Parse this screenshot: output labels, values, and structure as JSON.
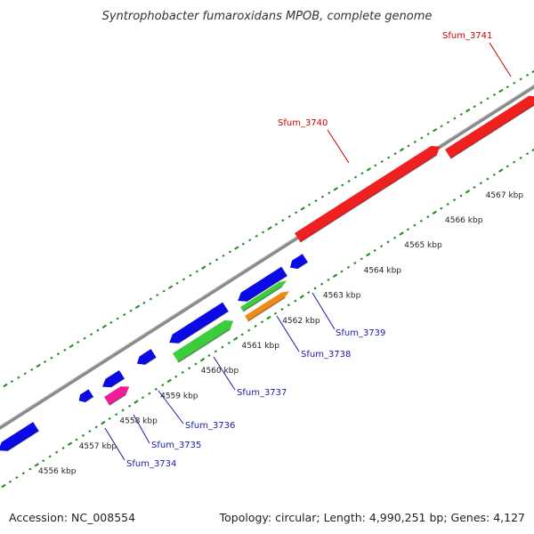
{
  "title": "Syntrophobacter fumaroxidans MPOB, complete genome",
  "footer": {
    "accession": "Accession: NC_008554",
    "summary": "Topology: circular; Length: 4,990,251 bp; Genes: 4,127"
  },
  "colors": {
    "backbone": "#8a8a8a",
    "tick": "#1f8a1f",
    "forward_label": "#cc0000",
    "reverse_label": "#1a1aa6",
    "cds_blue": "#0a0ae6",
    "cds_red": "#f02020",
    "cds_green": "#3ccc3c",
    "cds_orange": "#f08a14",
    "cds_pink": "#f01e96"
  },
  "scale_labels": [
    "4556 kbp",
    "4557 kbp",
    "4558 kbp",
    "4559 kbp",
    "4560 kbp",
    "4561 kbp",
    "4562 kbp",
    "4563 kbp",
    "4564 kbp",
    "4565 kbp",
    "4566 kbp",
    "4567 kbp"
  ],
  "forward_genes": [
    {
      "id": "Sfum_3740",
      "color": "cds_red"
    },
    {
      "id": "Sfum_3741",
      "color": "cds_red"
    }
  ],
  "reverse_genes": [
    {
      "id": "Sfum_3734",
      "color": "cds_blue"
    },
    {
      "id": "Sfum_3735",
      "color": "cds_pink"
    },
    {
      "id": "Sfum_3736",
      "color": "cds_blue"
    },
    {
      "id": "Sfum_3737",
      "color": "cds_green"
    },
    {
      "id": "Sfum_3738",
      "color": "cds_orange"
    },
    {
      "id": "Sfum_3739",
      "color": "cds_blue"
    }
  ],
  "unlabeled_genes": [
    "cds_blue",
    "cds_blue",
    "cds_blue",
    "cds_blue",
    "cds_blue",
    "cds_green"
  ]
}
